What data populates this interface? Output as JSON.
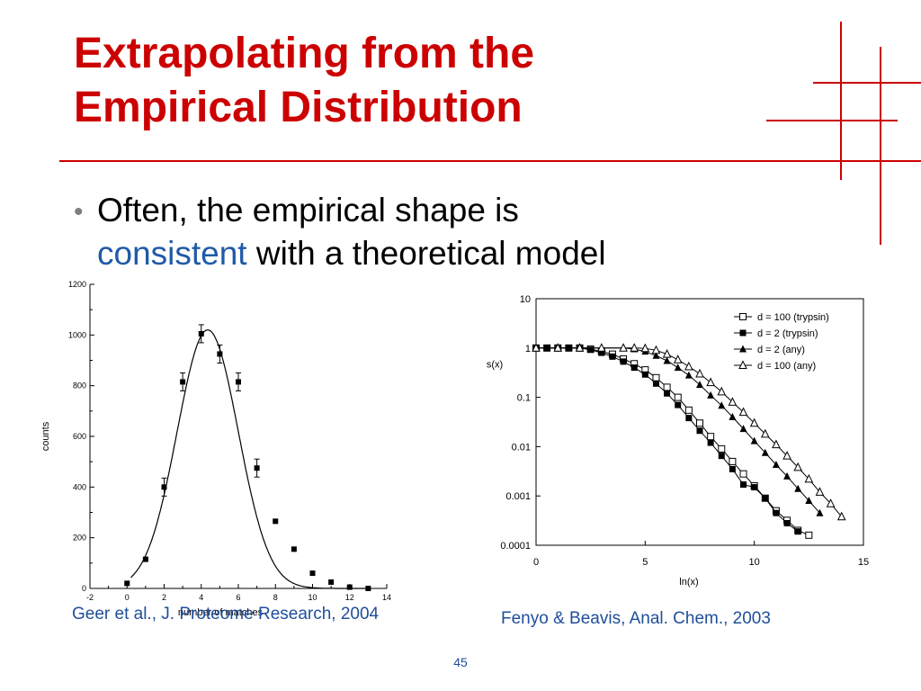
{
  "slide": {
    "title_line1": "Extrapolating from the",
    "title_line2": "Empirical Distribution",
    "bullet_part1": "Often, the empirical shape is",
    "bullet_highlight": "consistent",
    "bullet_part2": " with a theoretical model",
    "citation_left": "Geer et al., J. Proteome Research, 2004",
    "citation_right": "Fenyo & Beavis, Anal. Chem., 2003",
    "page_number": "45",
    "accent_color": "#cc0000",
    "link_color": "#1f4e9a"
  },
  "chart_data": [
    {
      "type": "scatter",
      "xlabel": "number of matches",
      "ylabel": "counts",
      "xlim": [
        -2,
        14
      ],
      "ylim": [
        0,
        1200
      ],
      "x_ticks": [
        "-2",
        "0",
        "2",
        "4",
        "6",
        "8",
        "10",
        "12",
        "14"
      ],
      "y_ticks": [
        "0",
        "200",
        "400",
        "600",
        "800",
        "1000",
        "1200"
      ],
      "points": [
        {
          "x": 0,
          "y": 20
        },
        {
          "x": 1,
          "y": 115
        },
        {
          "x": 2,
          "y": 400
        },
        {
          "x": 3,
          "y": 815
        },
        {
          "x": 4,
          "y": 1005
        },
        {
          "x": 5,
          "y": 925
        },
        {
          "x": 6,
          "y": 815
        },
        {
          "x": 7,
          "y": 475
        },
        {
          "x": 8,
          "y": 265
        },
        {
          "x": 9,
          "y": 155
        },
        {
          "x": 10,
          "y": 60
        },
        {
          "x": 11,
          "y": 25
        },
        {
          "x": 12,
          "y": 5
        },
        {
          "x": 13,
          "y": 0
        }
      ],
      "fit_curve": {
        "type": "gaussian",
        "peak": 1020,
        "center": 4.35,
        "sigma": 1.65
      }
    },
    {
      "type": "line",
      "xlabel": "ln(x)",
      "ylabel": "s(x)",
      "xlim": [
        0,
        15
      ],
      "ylim": [
        0.0001,
        10
      ],
      "y_scale": "log",
      "x_ticks": [
        "0",
        "5",
        "10",
        "15"
      ],
      "y_ticks": [
        "10",
        "1",
        "0.1",
        "0.01",
        "0.001",
        "0.0001"
      ],
      "legend_position": "top-right",
      "series": [
        {
          "name": "d = 100 (trypsin)",
          "marker": "open-square",
          "x": [
            0,
            0.5,
            1,
            1.5,
            2,
            2.5,
            3,
            3.5,
            4,
            4.5,
            5,
            5.5,
            6,
            6.5,
            7,
            7.5,
            8,
            8.5,
            9,
            9.5,
            10,
            10.5,
            11,
            11.5,
            12,
            12.5
          ],
          "y": [
            1,
            1,
            1,
            1,
            1,
            0.95,
            0.85,
            0.75,
            0.6,
            0.48,
            0.36,
            0.25,
            0.16,
            0.1,
            0.055,
            0.03,
            0.016,
            0.009,
            0.005,
            0.0028,
            0.0016,
            0.0009,
            0.0005,
            0.00032,
            0.0002,
            0.00016
          ]
        },
        {
          "name": "d = 2 (trypsin)",
          "marker": "filled-square",
          "x": [
            0,
            0.5,
            1,
            1.5,
            2,
            2.5,
            3,
            3.5,
            4,
            4.5,
            5,
            5.5,
            6,
            6.5,
            7,
            7.5,
            8,
            8.5,
            9,
            9.5,
            10,
            10.5,
            11,
            11.5,
            12
          ],
          "y": [
            1,
            1,
            1,
            1,
            1,
            0.92,
            0.8,
            0.67,
            0.53,
            0.4,
            0.29,
            0.19,
            0.12,
            0.07,
            0.038,
            0.021,
            0.012,
            0.0065,
            0.0035,
            0.0017,
            0.0015,
            0.0009,
            0.00045,
            0.00028,
            0.00019
          ]
        },
        {
          "name": "d = 2 (any)",
          "marker": "filled-triangle",
          "x": [
            0,
            1,
            2,
            3,
            4,
            4.5,
            5,
            5.5,
            6,
            6.5,
            7,
            7.5,
            8,
            8.5,
            9,
            9.5,
            10,
            10.5,
            11,
            11.5,
            12,
            12.5,
            13
          ],
          "y": [
            1,
            1,
            1,
            1,
            1,
            0.95,
            0.85,
            0.7,
            0.55,
            0.4,
            0.28,
            0.18,
            0.11,
            0.068,
            0.04,
            0.023,
            0.013,
            0.0075,
            0.0043,
            0.0025,
            0.0014,
            0.0008,
            0.00045
          ]
        },
        {
          "name": "d = 100 (any)",
          "marker": "open-triangle",
          "x": [
            0,
            1,
            2,
            3,
            4,
            4.5,
            5,
            5.5,
            6,
            6.5,
            7,
            7.5,
            8,
            8.5,
            9,
            9.5,
            10,
            10.5,
            11,
            11.5,
            12,
            12.5,
            13,
            13.5,
            14
          ],
          "y": [
            1,
            1,
            1,
            1,
            1,
            1,
            0.98,
            0.9,
            0.75,
            0.58,
            0.42,
            0.3,
            0.2,
            0.13,
            0.08,
            0.05,
            0.03,
            0.018,
            0.011,
            0.0065,
            0.0038,
            0.0022,
            0.0012,
            0.0007,
            0.00038
          ]
        }
      ]
    }
  ]
}
